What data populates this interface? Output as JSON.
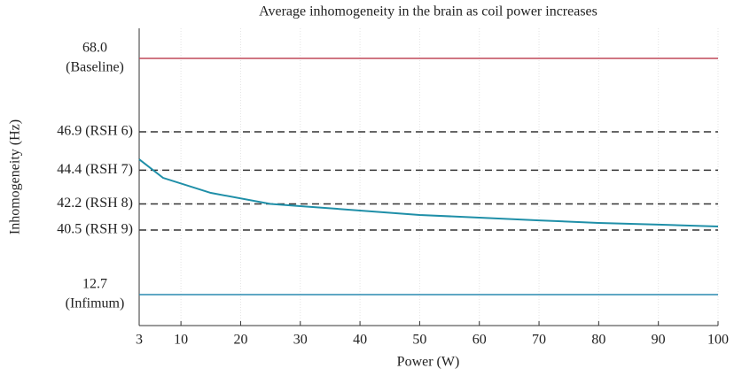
{
  "chart_data": {
    "type": "line",
    "title": "Average inhomogeneity in the brain as coil power increases",
    "xlabel": "Power (W)",
    "ylabel": "Inhomogeneity (Hz)",
    "x": [
      3,
      7,
      15,
      25,
      30,
      40,
      50,
      60,
      70,
      80,
      90,
      100
    ],
    "series": [
      {
        "color": "#1f8fa8",
        "values": [
          45.11,
          43.9,
          42.92,
          42.2,
          42.06,
          41.77,
          41.48,
          41.31,
          41.13,
          40.96,
          40.85,
          40.73
        ]
      }
    ],
    "xlim": [
      3,
      100
    ],
    "xticks": [
      3,
      10,
      20,
      30,
      40,
      50,
      60,
      70,
      80,
      90,
      100
    ],
    "yticks": [
      {
        "value": 68.0,
        "label": [
          "68.0",
          "(Baseline)"
        ]
      },
      {
        "value": 46.9,
        "label": "46.9 (RSH 6)"
      },
      {
        "value": 44.4,
        "label": "44.4 (RSH 7)"
      },
      {
        "value": 42.2,
        "label": "42.2 (RSH 8)"
      },
      {
        "value": 40.5,
        "label": "40.5 (RSH 9)"
      },
      {
        "value": 12.7,
        "label": [
          "12.7",
          "(Infimum)"
        ]
      }
    ],
    "hlines": [
      {
        "value": 68.0,
        "color": "#c0485a",
        "dashed": false
      },
      {
        "value": 46.9,
        "color": "#333333",
        "dashed": true
      },
      {
        "value": 44.4,
        "color": "#333333",
        "dashed": true
      },
      {
        "value": 42.2,
        "color": "#333333",
        "dashed": true
      },
      {
        "value": 40.5,
        "color": "#333333",
        "dashed": true
      },
      {
        "value": 12.7,
        "color": "#2a8ab0",
        "dashed": false
      }
    ],
    "grid": true
  }
}
